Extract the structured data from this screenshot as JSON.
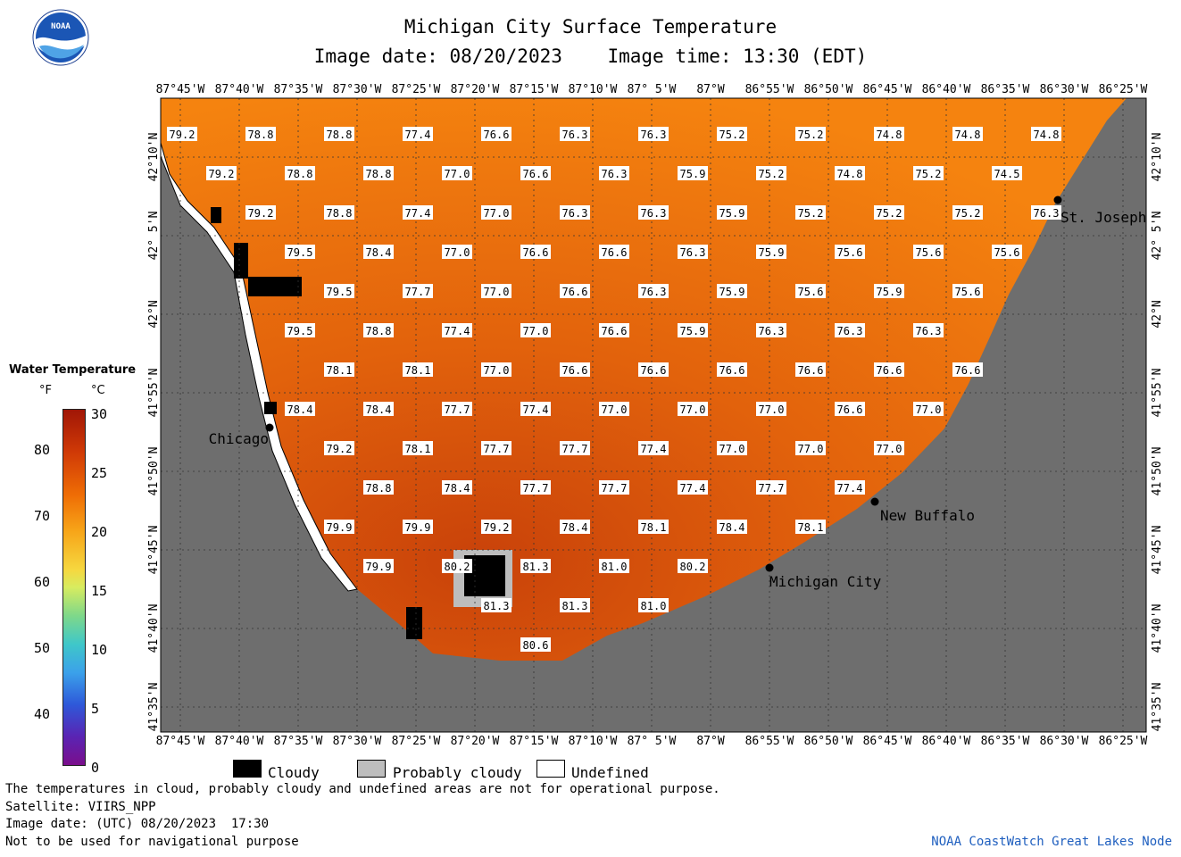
{
  "header": {
    "title": "Michigan City Surface Temperature",
    "subtitle": "Image date: 08/20/2023    Image time: 13:30 (EDT)"
  },
  "logo": {
    "text": "NOAA"
  },
  "legend": {
    "title": "Water Temperature",
    "unit_f": "°F",
    "unit_c": "°C",
    "f_ticks": [
      "80",
      "70",
      "60",
      "50",
      "40"
    ],
    "c_ticks": [
      "30",
      "25",
      "20",
      "15",
      "10",
      "5",
      "0"
    ]
  },
  "map": {
    "top_lon_labels": [
      "87°45'W",
      "87°40'W",
      "87°35'W",
      "87°30'W",
      "87°25'W",
      "87°20'W",
      "87°15'W",
      "87°10'W",
      "87° 5'W",
      "87°W",
      "86°55'W",
      "86°50'W",
      "86°45'W",
      "86°40'W",
      "86°35'W",
      "86°30'W",
      "86°25'W"
    ],
    "bottom_lon_labels": [
      "87°45'W",
      "87°40'W",
      "87°35'W",
      "87°30'W",
      "87°25'W",
      "87°20'W",
      "87°15'W",
      "87°10'W",
      "87° 5'W",
      "87°W",
      "86°55'W",
      "86°50'W",
      "86°45'W",
      "86°40'W",
      "86°35'W",
      "86°30'W",
      "86°25'W"
    ],
    "lat_labels": [
      "42°10'N",
      "42° 5'N",
      "42°N",
      "41°55'N",
      "41°50'N",
      "41°45'N",
      "41°40'N",
      "41°35'N"
    ],
    "cities": [
      "St. Joseph",
      "Chicago",
      "New Buffalo",
      "Michigan City"
    ],
    "temperature_rows": [
      [
        "79.2",
        "78.8",
        "78.8",
        "77.4",
        "76.6",
        "76.3",
        "76.3",
        "75.2",
        "75.2",
        "74.8",
        "74.8",
        "74.8"
      ],
      [
        "79.2",
        "78.8",
        "78.8",
        "77.0",
        "76.6",
        "76.3",
        "75.9",
        "75.2",
        "74.8",
        "75.2",
        "74.5"
      ],
      [
        "79.2",
        "78.8",
        "77.4",
        "77.0",
        "76.3",
        "76.3",
        "75.9",
        "75.2",
        "75.2",
        "75.2",
        "76.3"
      ],
      [
        "79.5",
        "78.4",
        "77.0",
        "76.6",
        "76.6",
        "76.3",
        "75.9",
        "75.6",
        "75.6",
        "75.6"
      ],
      [
        "79.5",
        "77.7",
        "77.0",
        "76.6",
        "76.3",
        "75.9",
        "75.6",
        "75.9",
        "75.6"
      ],
      [
        "79.5",
        "78.8",
        "77.4",
        "77.0",
        "76.6",
        "75.9",
        "76.3",
        "76.3",
        "76.3"
      ],
      [
        "78.1",
        "78.1",
        "77.0",
        "76.6",
        "76.6",
        "76.6",
        "76.6",
        "76.6",
        "76.6"
      ],
      [
        "78.4",
        "78.4",
        "77.7",
        "77.4",
        "77.0",
        "77.0",
        "77.0",
        "76.6",
        "77.0"
      ],
      [
        "79.2",
        "78.1",
        "77.7",
        "77.7",
        "77.4",
        "77.0",
        "77.0",
        "77.0"
      ],
      [
        "78.8",
        "78.4",
        "77.7",
        "77.7",
        "77.4",
        "77.7",
        "77.4"
      ],
      [
        "79.9",
        "79.9",
        "79.2",
        "78.4",
        "78.1",
        "78.4",
        "78.1"
      ],
      [
        "79.9",
        "80.2",
        "81.3",
        "81.0",
        "80.2"
      ],
      [
        "81.3",
        "81.3",
        "81.0"
      ],
      [
        "80.6"
      ]
    ]
  },
  "cloud_key": {
    "cloudy": "Cloudy",
    "probably_cloudy": "Probably cloudy",
    "undefined": "Undefined"
  },
  "footer": {
    "line1": "The temperatures in cloud, probably cloudy and undefined areas are not for operational purpose.",
    "line2": "Satellite: VIIRS_NPP",
    "line3": "Image date: (UTC) 08/20/2023  17:30",
    "line4": "Not to be used for navigational purpose",
    "credit": "NOAA CoastWatch Great Lakes Node"
  }
}
